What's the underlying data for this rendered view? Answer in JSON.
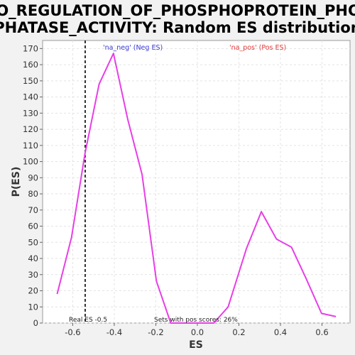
{
  "chart_data": {
    "type": "line",
    "title_line1": "GO_REGULATION_OF_PHOSPHOPROTEIN_PHOS",
    "title_line2": "PHATASE_ACTIVITY: Random ES distribution",
    "xlabel": "ES",
    "ylabel": "P(ES)",
    "xlim": [
      -0.745,
      0.735
    ],
    "ylim": [
      0,
      175
    ],
    "xticks": [
      "-0.6",
      "-0.4",
      "-0.2",
      "0.0",
      "0.2",
      "0.4",
      "0.6"
    ],
    "xtick_values": [
      -0.6,
      -0.4,
      -0.2,
      0.0,
      0.2,
      0.4,
      0.6
    ],
    "yticks": [
      0,
      10,
      20,
      30,
      40,
      50,
      60,
      70,
      80,
      90,
      100,
      110,
      120,
      130,
      140,
      150,
      160,
      170
    ],
    "grid": true,
    "series": [
      {
        "color": "#e83ee8",
        "x": [
          -0.675,
          -0.606,
          -0.541,
          -0.473,
          -0.404,
          -0.335,
          -0.266,
          -0.197,
          -0.128,
          -0.059,
          0.01,
          0.079,
          0.148,
          0.236,
          0.308,
          0.381,
          0.453,
          0.522,
          0.598,
          0.667
        ],
        "y": [
          18,
          53,
          105,
          148,
          167,
          126,
          92,
          26,
          0,
          0,
          0,
          0,
          10,
          46,
          69,
          52,
          47,
          28,
          6,
          4
        ]
      }
    ],
    "legend": [
      {
        "label": "'na_neg' (Neg ES)",
        "color": "#3a3ad8"
      },
      {
        "label": "'na_pos' (Pos ES)",
        "color": "#e03a3a"
      }
    ],
    "real_es": -0.54,
    "annotations": {
      "real_es_label": "Real ES -0.5",
      "pos_scores_label": "Sets with pos scores: 26%"
    }
  }
}
